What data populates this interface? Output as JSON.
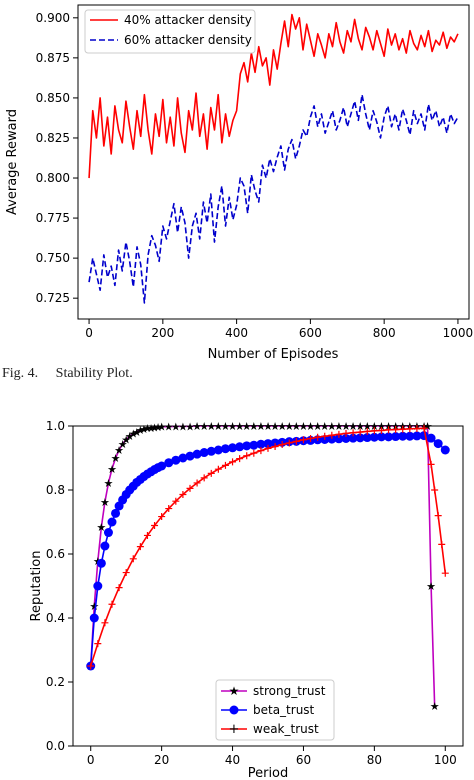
{
  "caption": "Fig. 4.     Stability Plot.",
  "chart_data": [
    {
      "type": "line",
      "title": "",
      "xlabel": "Number of Episodes",
      "ylabel": "Average Reward",
      "xlim": [
        -30,
        1030
      ],
      "ylim": [
        0.712,
        0.908
      ],
      "xticks": [
        0,
        200,
        400,
        600,
        800,
        1000
      ],
      "yticks": [
        0.725,
        0.75,
        0.775,
        0.8,
        0.825,
        0.85,
        0.875,
        0.9
      ],
      "ytick_labels": [
        "0.725",
        "0.750",
        "0.775",
        "0.800",
        "0.825",
        "0.850",
        "0.875",
        "0.900"
      ],
      "legend_position": "top-left",
      "grid": false,
      "series": [
        {
          "name": "40% attacker density",
          "color": "#ff0000",
          "style": "solid",
          "x": [
            0,
            10,
            20,
            30,
            40,
            50,
            60,
            70,
            80,
            90,
            100,
            110,
            120,
            130,
            140,
            150,
            160,
            170,
            180,
            190,
            200,
            210,
            220,
            230,
            240,
            250,
            260,
            270,
            280,
            290,
            300,
            310,
            320,
            330,
            340,
            350,
            360,
            370,
            380,
            390,
            400,
            410,
            420,
            430,
            440,
            450,
            460,
            470,
            480,
            490,
            500,
            510,
            520,
            530,
            540,
            550,
            560,
            570,
            580,
            590,
            600,
            610,
            620,
            630,
            640,
            650,
            660,
            670,
            680,
            690,
            700,
            710,
            720,
            730,
            740,
            750,
            760,
            770,
            780,
            790,
            800,
            810,
            820,
            830,
            840,
            850,
            860,
            870,
            880,
            890,
            900,
            910,
            920,
            930,
            940,
            950,
            960,
            970,
            980,
            990,
            1000
          ],
          "values": [
            0.8,
            0.842,
            0.825,
            0.85,
            0.82,
            0.838,
            0.815,
            0.845,
            0.83,
            0.822,
            0.848,
            0.832,
            0.818,
            0.842,
            0.826,
            0.852,
            0.83,
            0.815,
            0.84,
            0.826,
            0.849,
            0.822,
            0.838,
            0.82,
            0.85,
            0.828,
            0.816,
            0.842,
            0.83,
            0.853,
            0.826,
            0.84,
            0.818,
            0.844,
            0.83,
            0.852,
            0.822,
            0.84,
            0.826,
            0.836,
            0.842,
            0.865,
            0.872,
            0.86,
            0.878,
            0.866,
            0.882,
            0.87,
            0.875,
            0.858,
            0.88,
            0.868,
            0.884,
            0.898,
            0.882,
            0.902,
            0.893,
            0.9,
            0.88,
            0.896,
            0.886,
            0.876,
            0.89,
            0.883,
            0.875,
            0.89,
            0.882,
            0.897,
            0.885,
            0.878,
            0.892,
            0.885,
            0.899,
            0.887,
            0.88,
            0.894,
            0.888,
            0.88,
            0.892,
            0.884,
            0.876,
            0.893,
            0.883,
            0.89,
            0.88,
            0.887,
            0.878,
            0.892,
            0.884,
            0.88,
            0.889,
            0.882,
            0.892,
            0.879,
            0.886,
            0.883,
            0.891,
            0.881,
            0.888,
            0.885,
            0.89
          ]
        },
        {
          "name": "60% attacker density",
          "color": "#0000cc",
          "style": "dashed",
          "x": [
            0,
            10,
            20,
            30,
            40,
            50,
            60,
            70,
            80,
            90,
            100,
            110,
            120,
            130,
            140,
            150,
            160,
            170,
            180,
            190,
            200,
            210,
            220,
            230,
            240,
            250,
            260,
            270,
            280,
            290,
            300,
            310,
            320,
            330,
            340,
            350,
            360,
            370,
            380,
            390,
            400,
            410,
            420,
            430,
            440,
            450,
            460,
            470,
            480,
            490,
            500,
            510,
            520,
            530,
            540,
            550,
            560,
            570,
            580,
            590,
            600,
            610,
            620,
            630,
            640,
            650,
            660,
            670,
            680,
            690,
            700,
            710,
            720,
            730,
            740,
            750,
            760,
            770,
            780,
            790,
            800,
            810,
            820,
            830,
            840,
            850,
            860,
            870,
            880,
            890,
            900,
            910,
            920,
            930,
            940,
            950,
            960,
            970,
            980,
            990,
            1000
          ],
          "values": [
            0.735,
            0.75,
            0.74,
            0.73,
            0.752,
            0.738,
            0.745,
            0.733,
            0.755,
            0.742,
            0.76,
            0.748,
            0.732,
            0.757,
            0.746,
            0.722,
            0.752,
            0.764,
            0.758,
            0.748,
            0.77,
            0.762,
            0.773,
            0.784,
            0.766,
            0.782,
            0.772,
            0.75,
            0.77,
            0.778,
            0.762,
            0.785,
            0.772,
            0.79,
            0.76,
            0.782,
            0.795,
            0.77,
            0.788,
            0.774,
            0.783,
            0.8,
            0.795,
            0.778,
            0.802,
            0.792,
            0.785,
            0.808,
            0.8,
            0.812,
            0.804,
            0.813,
            0.82,
            0.805,
            0.818,
            0.824,
            0.812,
            0.82,
            0.83,
            0.826,
            0.838,
            0.845,
            0.832,
            0.84,
            0.828,
            0.835,
            0.842,
            0.83,
            0.836,
            0.844,
            0.832,
            0.84,
            0.848,
            0.836,
            0.852,
            0.84,
            0.83,
            0.842,
            0.835,
            0.825,
            0.838,
            0.845,
            0.832,
            0.84,
            0.83,
            0.843,
            0.836,
            0.827,
            0.842,
            0.834,
            0.84,
            0.83,
            0.846,
            0.836,
            0.842,
            0.832,
            0.838,
            0.828,
            0.84,
            0.834,
            0.838
          ]
        }
      ]
    },
    {
      "type": "line",
      "title": "",
      "xlabel": "Period",
      "ylabel": "Reputation",
      "xlim": [
        -5,
        105
      ],
      "ylim": [
        0.0,
        1.0
      ],
      "xticks": [
        0,
        20,
        40,
        60,
        80,
        100
      ],
      "yticks": [
        0.0,
        0.2,
        0.4,
        0.6,
        0.8,
        1.0
      ],
      "ytick_labels": [
        "0.0",
        "0.2",
        "0.4",
        "0.6",
        "0.8",
        "1.0"
      ],
      "legend_position": "bottom-center",
      "grid": false,
      "series": [
        {
          "name": "strong_trust",
          "color": "#bf00bf",
          "marker": "star",
          "x": [
            0,
            1,
            2,
            3,
            4,
            5,
            6,
            7,
            8,
            9,
            10,
            11,
            12,
            13,
            14,
            15,
            16,
            17,
            18,
            19,
            20,
            22,
            24,
            26,
            28,
            30,
            32,
            34,
            36,
            38,
            40,
            42,
            44,
            46,
            48,
            50,
            52,
            54,
            56,
            58,
            60,
            62,
            64,
            66,
            68,
            70,
            72,
            74,
            76,
            78,
            80,
            82,
            84,
            86,
            88,
            90,
            92,
            94,
            95,
            96,
            97
          ],
          "values": [
            0.25,
            0.438,
            0.578,
            0.684,
            0.763,
            0.822,
            0.866,
            0.9,
            0.925,
            0.944,
            0.958,
            0.968,
            0.976,
            0.982,
            0.987,
            0.99,
            0.993,
            0.994,
            0.996,
            0.997,
            0.998,
            0.998,
            0.999,
            0.999,
            0.999,
            1.0,
            1.0,
            1.0,
            1.0,
            1.0,
            1.0,
            1.0,
            1.0,
            1.0,
            1.0,
            1.0,
            1.0,
            1.0,
            1.0,
            1.0,
            1.0,
            1.0,
            1.0,
            1.0,
            1.0,
            1.0,
            1.0,
            1.0,
            1.0,
            1.0,
            1.0,
            1.0,
            1.0,
            1.0,
            1.0,
            1.0,
            1.0,
            1.0,
            1.0,
            0.5,
            0.125
          ]
        },
        {
          "name": "beta_trust",
          "color": "#0000ff",
          "marker": "circle",
          "x": [
            0,
            1,
            2,
            3,
            4,
            5,
            6,
            7,
            8,
            9,
            10,
            11,
            12,
            13,
            14,
            15,
            16,
            17,
            18,
            19,
            20,
            22,
            24,
            26,
            28,
            30,
            32,
            34,
            36,
            38,
            40,
            42,
            44,
            46,
            48,
            50,
            52,
            54,
            56,
            58,
            60,
            62,
            64,
            66,
            68,
            70,
            72,
            74,
            76,
            78,
            80,
            82,
            84,
            86,
            88,
            90,
            92,
            94,
            96,
            98,
            100
          ],
          "values": [
            0.25,
            0.4,
            0.5,
            0.571,
            0.625,
            0.667,
            0.7,
            0.727,
            0.75,
            0.769,
            0.786,
            0.8,
            0.812,
            0.824,
            0.833,
            0.842,
            0.85,
            0.857,
            0.864,
            0.87,
            0.875,
            0.885,
            0.893,
            0.9,
            0.906,
            0.912,
            0.917,
            0.921,
            0.925,
            0.929,
            0.932,
            0.935,
            0.938,
            0.94,
            0.943,
            0.945,
            0.947,
            0.949,
            0.951,
            0.952,
            0.954,
            0.955,
            0.957,
            0.958,
            0.959,
            0.96,
            0.961,
            0.962,
            0.963,
            0.964,
            0.965,
            0.966,
            0.966,
            0.967,
            0.968,
            0.968,
            0.969,
            0.97,
            0.962,
            0.945,
            0.925
          ]
        },
        {
          "name": "weak_trust",
          "color": "#ff0000",
          "marker": "plus",
          "x": [
            0,
            2,
            4,
            6,
            8,
            10,
            12,
            14,
            16,
            18,
            20,
            22,
            24,
            26,
            28,
            30,
            32,
            34,
            36,
            38,
            40,
            42,
            44,
            46,
            48,
            50,
            52,
            54,
            56,
            58,
            60,
            62,
            64,
            66,
            68,
            70,
            72,
            74,
            76,
            78,
            80,
            82,
            84,
            86,
            88,
            90,
            92,
            94,
            96,
            97,
            98,
            99,
            100
          ],
          "values": [
            0.25,
            0.32,
            0.385,
            0.443,
            0.495,
            0.542,
            0.585,
            0.623,
            0.658,
            0.689,
            0.717,
            0.742,
            0.765,
            0.786,
            0.805,
            0.822,
            0.838,
            0.852,
            0.865,
            0.877,
            0.888,
            0.898,
            0.907,
            0.915,
            0.923,
            0.93,
            0.936,
            0.942,
            0.947,
            0.952,
            0.957,
            0.961,
            0.965,
            0.968,
            0.971,
            0.974,
            0.977,
            0.979,
            0.981,
            0.983,
            0.985,
            0.986,
            0.988,
            0.989,
            0.99,
            0.991,
            0.992,
            0.993,
            0.88,
            0.8,
            0.72,
            0.63,
            0.54
          ]
        }
      ]
    }
  ]
}
